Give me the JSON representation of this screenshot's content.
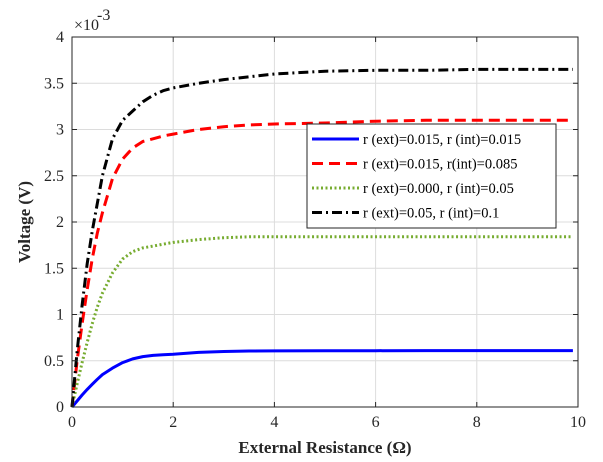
{
  "chart_data": {
    "type": "line",
    "title": "",
    "xlabel": "External Resistance (Ω)",
    "ylabel": "Voltage (V)",
    "xlim": [
      0,
      10
    ],
    "ylim": [
      0,
      0.004
    ],
    "x_ticks": [
      0,
      2,
      4,
      6,
      8,
      10
    ],
    "x_tick_labels": [
      "0",
      "2",
      "4",
      "6",
      "8",
      "10"
    ],
    "y_ticks": [
      0,
      0.0005,
      0.001,
      0.0015,
      0.002,
      0.0025,
      0.003,
      0.0035,
      0.004
    ],
    "y_tick_labels": [
      "0",
      "0.5",
      "1",
      "1.5",
      "2",
      "2.5",
      "3",
      "3.5",
      "4"
    ],
    "y_exponent_base": "×10",
    "y_exponent_power": "-3",
    "grid": true,
    "legend_position": "right-middle",
    "x": [
      0,
      0.1,
      0.2,
      0.3,
      0.4,
      0.5,
      0.6,
      0.8,
      1.0,
      1.2,
      1.4,
      1.6,
      1.8,
      2.0,
      2.5,
      3.0,
      3.5,
      4.0,
      5.0,
      6.0,
      7.0,
      8.0,
      9.0,
      9.9
    ],
    "series": [
      {
        "name": "r (ext)=0.015, r (int)=0.015",
        "color": "#0000ff",
        "dash": "solid",
        "values": [
          0,
          6.5e-05,
          0.00013,
          0.00019,
          0.000245,
          0.0003,
          0.00035,
          0.00042,
          0.00048,
          0.00052,
          0.000545,
          0.000558,
          0.000565,
          0.00057,
          0.00059,
          0.0006,
          0.000605,
          0.000607,
          0.000608,
          0.000609,
          0.00061,
          0.00061,
          0.00061,
          0.00061
        ]
      },
      {
        "name": "r (ext)=0.015, r(int)=0.085",
        "color": "#ff0000",
        "dash": "dashed",
        "values": [
          0,
          0.0005,
          0.0009,
          0.00127,
          0.0016,
          0.00188,
          0.0021,
          0.00247,
          0.00268,
          0.0028,
          0.00287,
          0.0029,
          0.00293,
          0.00295,
          0.003,
          0.00303,
          0.00305,
          0.00306,
          0.00307,
          0.00309,
          0.0031,
          0.0031,
          0.0031,
          0.0031
        ]
      },
      {
        "name": "r (ext)=0.000, r (int)=0.05",
        "color": "#77ac30",
        "dash": "dotted",
        "values": [
          0,
          0.00025,
          0.00048,
          0.0007,
          0.0009,
          0.00108,
          0.00123,
          0.00145,
          0.0016,
          0.00168,
          0.00172,
          0.00174,
          0.00176,
          0.00178,
          0.00181,
          0.00183,
          0.00184,
          0.00184,
          0.00184,
          0.00184,
          0.00184,
          0.00184,
          0.00184,
          0.00184
        ]
      },
      {
        "name": "r (ext)=0.05, r (int)=0.1",
        "color": "#000000",
        "dash": "dashdot",
        "values": [
          0,
          0.0006,
          0.0011,
          0.00155,
          0.0019,
          0.0022,
          0.0025,
          0.0029,
          0.0031,
          0.0032,
          0.0033,
          0.00337,
          0.00342,
          0.00345,
          0.0035,
          0.00354,
          0.00357,
          0.0036,
          0.00363,
          0.00364,
          0.00364,
          0.00365,
          0.00365,
          0.00365
        ]
      }
    ]
  }
}
